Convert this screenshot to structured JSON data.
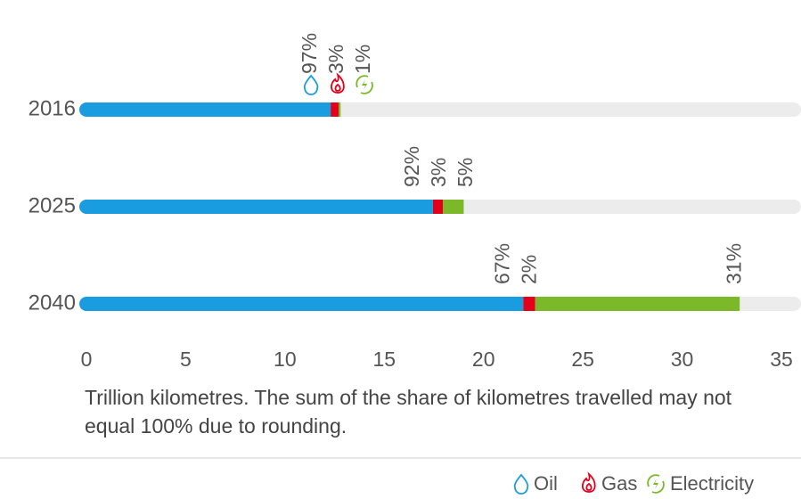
{
  "chart_data": {
    "type": "stacked-bar-horizontal",
    "categories": [
      "2016",
      "2025",
      "2040"
    ],
    "series": [
      {
        "name": "Oil",
        "color": "#1a9de0",
        "values": [
          12.3,
          17.45,
          22.0
        ],
        "value_labels": [
          "97%",
          "92%",
          "67%"
        ]
      },
      {
        "name": "Gas",
        "color": "#e3001b",
        "values": [
          0.4,
          0.5,
          0.6
        ],
        "value_labels": [
          "3%",
          "3%",
          "2%"
        ]
      },
      {
        "name": "Electricity",
        "color": "#7cb92a",
        "values": [
          0.1,
          1.05,
          10.3
        ],
        "value_labels": [
          "1%",
          "5%",
          "31%"
        ]
      }
    ],
    "xlim": [
      0,
      35
    ],
    "xticks": [
      0,
      5,
      10,
      15,
      20,
      25,
      30,
      35
    ],
    "note": "Trillion kilometres. The sum of the share of kilometres travelled may not equal 100% due to rounding.",
    "legend": "bottom-right"
  }
}
